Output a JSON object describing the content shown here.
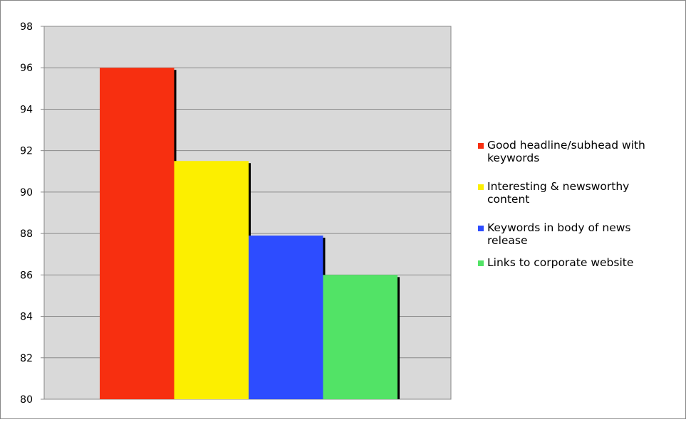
{
  "chart_data": {
    "type": "bar",
    "title": "",
    "xlabel": "",
    "ylabel": "",
    "ylim": [
      80,
      98
    ],
    "yticks": [
      "80",
      "82",
      "84",
      "86",
      "88",
      "90",
      "92",
      "94",
      "96",
      "98"
    ],
    "grid": true,
    "legend_position": "right",
    "plot_background": "#d9d9d9",
    "bars": [
      {
        "name": "Good headline/subhead with keywords",
        "value": 96.0,
        "color": "#f72f10"
      },
      {
        "name": "Interesting & newsworthy content",
        "value": 91.5,
        "color": "#fcef00"
      },
      {
        "name": "Keywords in body of news release",
        "value": 87.9,
        "color": "#2d4cff"
      },
      {
        "name": "Links to corporate website",
        "value": 86.0,
        "color": "#52e366"
      }
    ],
    "legend": [
      {
        "lines": [
          "Good headline/subhead with",
          "keywords"
        ],
        "color": "#f72f10"
      },
      {
        "lines": [
          "Interesting & newsworthy",
          "content"
        ],
        "color": "#fcef00"
      },
      {
        "lines": [
          "Keywords in body of news",
          "release"
        ],
        "color": "#2d4cff"
      },
      {
        "lines": [
          "Links to corporate website"
        ],
        "color": "#52e366"
      }
    ]
  }
}
